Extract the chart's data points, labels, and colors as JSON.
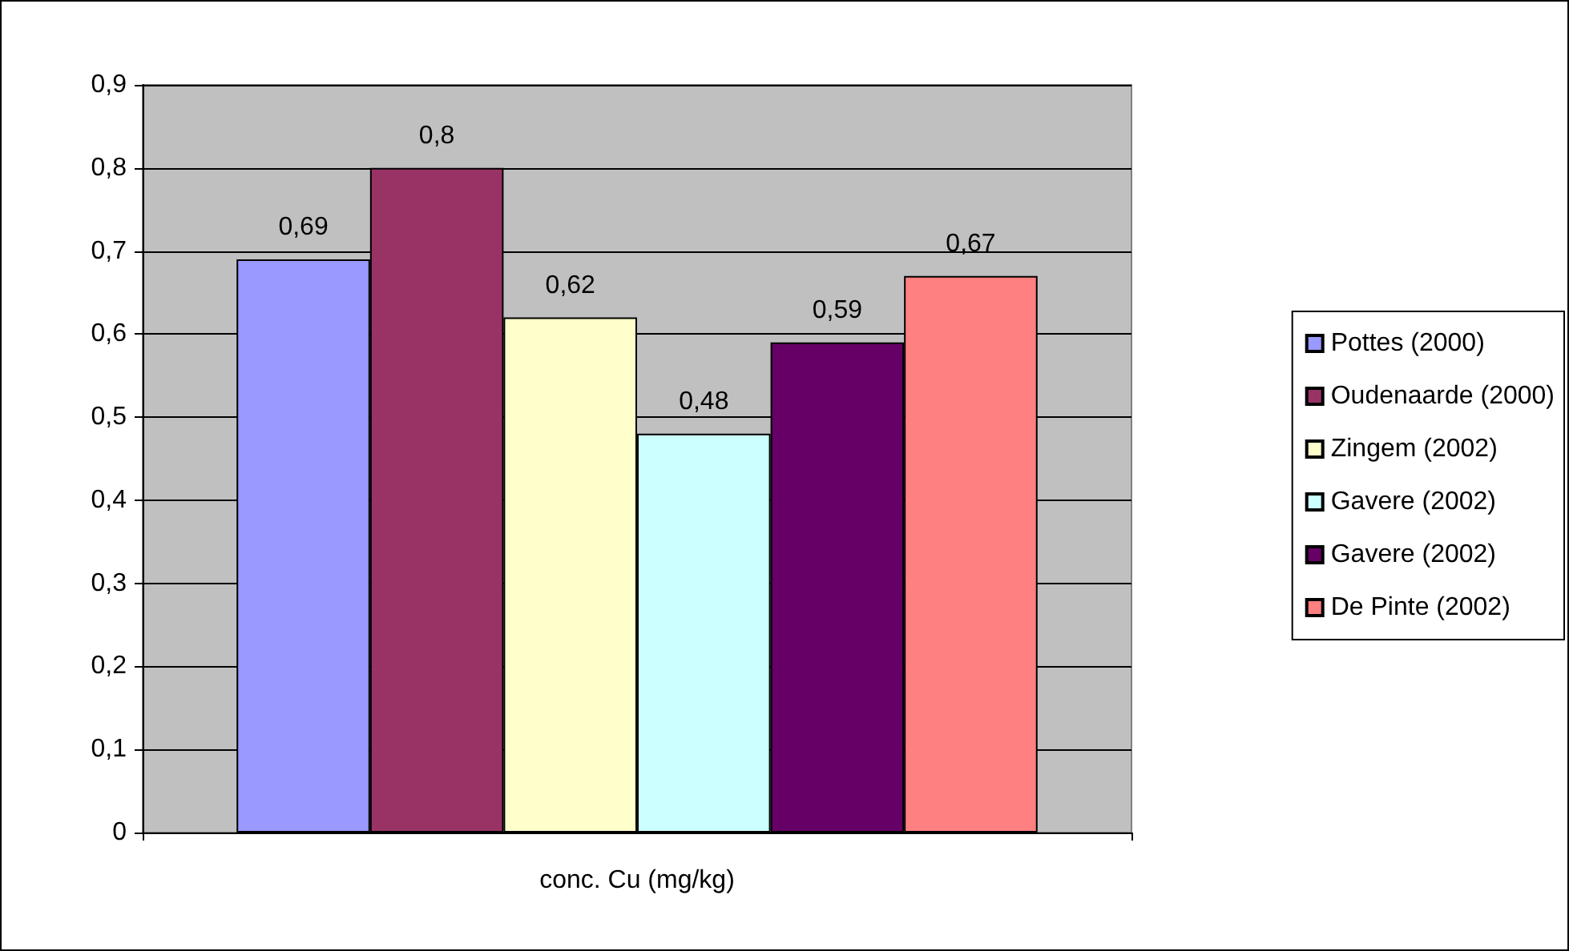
{
  "chart_data": {
    "type": "bar",
    "categories": [
      "conc. Cu (mg/kg)"
    ],
    "series": [
      {
        "name": "Pottes (2000)",
        "color": "#9999ff",
        "values": [
          0.69
        ],
        "value_labels": [
          "0,69"
        ]
      },
      {
        "name": "Oudenaarde (2000)",
        "color": "#993366",
        "values": [
          0.8
        ],
        "value_labels": [
          "0,8"
        ]
      },
      {
        "name": "Zingem (2002)",
        "color": "#ffffcc",
        "values": [
          0.62
        ],
        "value_labels": [
          "0,62"
        ]
      },
      {
        "name": "Gavere (2002)",
        "color": "#ccffff",
        "values": [
          0.48
        ],
        "value_labels": [
          "0,48"
        ]
      },
      {
        "name": "Gavere (2002)",
        "color": "#660066",
        "values": [
          0.59
        ],
        "value_labels": [
          "0,59"
        ]
      },
      {
        "name": "De Pinte (2002)",
        "color": "#ff8080",
        "values": [
          0.67
        ],
        "value_labels": [
          "0,67"
        ]
      }
    ],
    "ylim": [
      0,
      0.9
    ],
    "yticks": [
      {
        "value": 0,
        "label": "0"
      },
      {
        "value": 0.1,
        "label": "0,1"
      },
      {
        "value": 0.2,
        "label": "0,2"
      },
      {
        "value": 0.3,
        "label": "0,3"
      },
      {
        "value": 0.4,
        "label": "0,4"
      },
      {
        "value": 0.5,
        "label": "0,5"
      },
      {
        "value": 0.6,
        "label": "0,6"
      },
      {
        "value": 0.7,
        "label": "0,7"
      },
      {
        "value": 0.8,
        "label": "0,8"
      },
      {
        "value": 0.9,
        "label": "0,9"
      }
    ],
    "grid": "y",
    "legend": "right"
  }
}
